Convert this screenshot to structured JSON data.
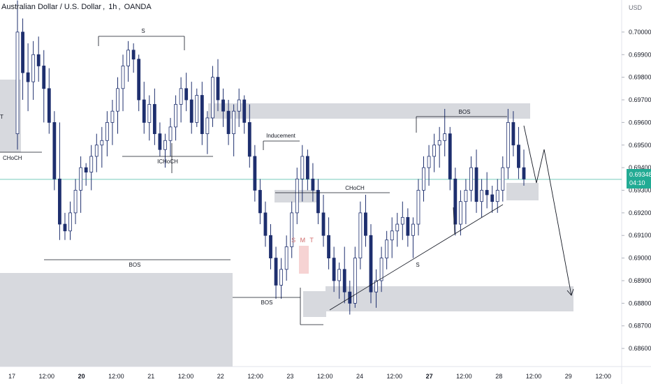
{
  "title": {
    "symbol": "Australian Dollar / U.S. Dollar",
    "interval": "1h",
    "exchange": "OANDA"
  },
  "currency_label": "USD",
  "last_price": {
    "value": "0.69348",
    "countdown": "04:10",
    "color": "#22ab94"
  },
  "colors": {
    "candle": "#1e2f6e",
    "zone": "#d7d9de",
    "smt_zone": "#f6d3d3",
    "line": "#131722",
    "price_line": "#22ab94"
  },
  "chart_data": {
    "type": "candlestick",
    "title": "Australian Dollar / U.S. Dollar, 1h, OANDA",
    "y_ticks": [
      "0.70000",
      "0.69900",
      "0.69800",
      "0.69700",
      "0.69600",
      "0.69500",
      "0.69400",
      "0.69300",
      "0.69200",
      "0.69100",
      "0.69000",
      "0.68900",
      "0.68800",
      "0.68700",
      "0.68600"
    ],
    "ylim": [
      0.6852,
      0.7008
    ],
    "x_ticks": [
      {
        "label": "17",
        "bold": false
      },
      {
        "label": "12:00",
        "bold": false
      },
      {
        "label": "20",
        "bold": true
      },
      {
        "label": "12:00",
        "bold": false
      },
      {
        "label": "21",
        "bold": false
      },
      {
        "label": "12:00",
        "bold": false
      },
      {
        "label": "22",
        "bold": false
      },
      {
        "label": "12:00",
        "bold": false
      },
      {
        "label": "23",
        "bold": false
      },
      {
        "label": "12:00",
        "bold": false
      },
      {
        "label": "24",
        "bold": false
      },
      {
        "label": "12:00",
        "bold": false
      },
      {
        "label": "27",
        "bold": true
      },
      {
        "label": "12:00",
        "bold": false
      },
      {
        "label": "28",
        "bold": false
      },
      {
        "label": "12:00",
        "bold": false
      },
      {
        "label": "29",
        "bold": false
      },
      {
        "label": "12:00",
        "bold": false
      }
    ],
    "annotations": [
      "S",
      "CHoCH",
      "ICHoCH",
      "BOS",
      "Inducement",
      "CHoCH",
      "BOS",
      "S M T",
      "BOS",
      "S",
      "T"
    ],
    "last_price": 0.69348,
    "candles": [
      [
        0.6955,
        0.7014,
        0.6948,
        0.7
      ],
      [
        0.7,
        0.7006,
        0.697,
        0.6982
      ],
      [
        0.6982,
        0.6995,
        0.6965,
        0.6978
      ],
      [
        0.6978,
        0.6996,
        0.697,
        0.699
      ],
      [
        0.699,
        0.6998,
        0.6978,
        0.6985
      ],
      [
        0.6985,
        0.6992,
        0.696,
        0.6975
      ],
      [
        0.6975,
        0.6984,
        0.6955,
        0.696
      ],
      [
        0.696,
        0.6965,
        0.693,
        0.6935
      ],
      [
        0.6935,
        0.696,
        0.6908,
        0.6915
      ],
      [
        0.6915,
        0.692,
        0.6908,
        0.6912
      ],
      [
        0.6912,
        0.6925,
        0.6908,
        0.692
      ],
      [
        0.692,
        0.6935,
        0.6915,
        0.693
      ],
      [
        0.693,
        0.6945,
        0.692,
        0.694
      ],
      [
        0.694,
        0.6942,
        0.6932,
        0.6938
      ],
      [
        0.6938,
        0.695,
        0.693,
        0.6945
      ],
      [
        0.6945,
        0.6955,
        0.6938,
        0.695
      ],
      [
        0.695,
        0.6958,
        0.694,
        0.6952
      ],
      [
        0.6952,
        0.6965,
        0.6945,
        0.696
      ],
      [
        0.696,
        0.697,
        0.695,
        0.6965
      ],
      [
        0.6965,
        0.698,
        0.6955,
        0.6975
      ],
      [
        0.6975,
        0.699,
        0.6965,
        0.6985
      ],
      [
        0.6985,
        0.6996,
        0.6978,
        0.6992
      ],
      [
        0.6992,
        0.6995,
        0.6982,
        0.6988
      ],
      [
        0.6988,
        0.699,
        0.6965,
        0.697
      ],
      [
        0.697,
        0.6978,
        0.6955,
        0.696
      ],
      [
        0.696,
        0.6972,
        0.6952,
        0.6968
      ],
      [
        0.6968,
        0.6975,
        0.695,
        0.6955
      ],
      [
        0.6955,
        0.696,
        0.6945,
        0.6948
      ],
      [
        0.6948,
        0.6955,
        0.694,
        0.6952
      ],
      [
        0.6952,
        0.6962,
        0.6945,
        0.6958
      ],
      [
        0.6958,
        0.6972,
        0.6952,
        0.6968
      ],
      [
        0.6968,
        0.698,
        0.696,
        0.6975
      ],
      [
        0.6975,
        0.6982,
        0.6965,
        0.697
      ],
      [
        0.697,
        0.6978,
        0.6955,
        0.696
      ],
      [
        0.696,
        0.6975,
        0.6958,
        0.6972
      ],
      [
        0.6972,
        0.6978,
        0.695,
        0.6955
      ],
      [
        0.6955,
        0.6965,
        0.6946,
        0.6962
      ],
      [
        0.6962,
        0.6985,
        0.6958,
        0.698
      ],
      [
        0.698,
        0.6988,
        0.6965,
        0.697
      ],
      [
        0.697,
        0.6975,
        0.6958,
        0.6965
      ],
      [
        0.6965,
        0.697,
        0.695,
        0.6955
      ],
      [
        0.6955,
        0.6968,
        0.6945,
        0.6965
      ],
      [
        0.6965,
        0.6975,
        0.6958,
        0.697
      ],
      [
        0.697,
        0.6972,
        0.6955,
        0.696
      ],
      [
        0.696,
        0.6968,
        0.694,
        0.6945
      ],
      [
        0.6945,
        0.695,
        0.6925,
        0.693
      ],
      [
        0.693,
        0.6935,
        0.6915,
        0.692
      ],
      [
        0.692,
        0.6925,
        0.6905,
        0.691
      ],
      [
        0.691,
        0.6915,
        0.6895,
        0.69
      ],
      [
        0.69,
        0.6905,
        0.6882,
        0.6888
      ],
      [
        0.6888,
        0.69,
        0.6882,
        0.6895
      ],
      [
        0.6895,
        0.691,
        0.689,
        0.6905
      ],
      [
        0.6905,
        0.6925,
        0.69,
        0.692
      ],
      [
        0.692,
        0.694,
        0.6915,
        0.6935
      ],
      [
        0.6935,
        0.695,
        0.6925,
        0.6945
      ],
      [
        0.6945,
        0.6948,
        0.693,
        0.6935
      ],
      [
        0.6935,
        0.6942,
        0.6925,
        0.693
      ],
      [
        0.693,
        0.6935,
        0.6915,
        0.692
      ],
      [
        0.692,
        0.6928,
        0.6905,
        0.691
      ],
      [
        0.691,
        0.6918,
        0.6895,
        0.69
      ],
      [
        0.69,
        0.6905,
        0.6885,
        0.689
      ],
      [
        0.689,
        0.6898,
        0.6882,
        0.6895
      ],
      [
        0.6895,
        0.6905,
        0.688,
        0.6885
      ],
      [
        0.6885,
        0.689,
        0.6875,
        0.688
      ],
      [
        0.688,
        0.6905,
        0.6878,
        0.69
      ],
      [
        0.69,
        0.6925,
        0.6895,
        0.692
      ],
      [
        0.692,
        0.6928,
        0.6905,
        0.691
      ],
      [
        0.691,
        0.6915,
        0.688,
        0.6885
      ],
      [
        0.6885,
        0.6895,
        0.6878,
        0.689
      ],
      [
        0.689,
        0.6905,
        0.6885,
        0.69
      ],
      [
        0.69,
        0.6912,
        0.6895,
        0.6908
      ],
      [
        0.6908,
        0.6918,
        0.69,
        0.6912
      ],
      [
        0.6912,
        0.692,
        0.6905,
        0.6915
      ],
      [
        0.6915,
        0.6925,
        0.6908,
        0.6918
      ],
      [
        0.6918,
        0.6922,
        0.6905,
        0.691
      ],
      [
        0.691,
        0.6918,
        0.69,
        0.6915
      ],
      [
        0.6915,
        0.6935,
        0.691,
        0.693
      ],
      [
        0.693,
        0.6945,
        0.6925,
        0.694
      ],
      [
        0.694,
        0.695,
        0.6932,
        0.6945
      ],
      [
        0.6945,
        0.6955,
        0.6938,
        0.695
      ],
      [
        0.695,
        0.6958,
        0.694,
        0.6952
      ],
      [
        0.6952,
        0.6966,
        0.6945,
        0.6955
      ],
      [
        0.6955,
        0.6958,
        0.693,
        0.6935
      ],
      [
        0.6935,
        0.694,
        0.691,
        0.6915
      ],
      [
        0.6915,
        0.693,
        0.691,
        0.6925
      ],
      [
        0.6925,
        0.6935,
        0.6915,
        0.693
      ],
      [
        0.693,
        0.6945,
        0.6925,
        0.694
      ],
      [
        0.694,
        0.6948,
        0.692,
        0.6925
      ],
      [
        0.6925,
        0.6935,
        0.6918,
        0.693
      ],
      [
        0.693,
        0.6938,
        0.6922,
        0.6928
      ],
      [
        0.6928,
        0.6932,
        0.692,
        0.6925
      ],
      [
        0.6925,
        0.6935,
        0.692,
        0.693
      ],
      [
        0.693,
        0.6945,
        0.6925,
        0.694
      ],
      [
        0.694,
        0.6966,
        0.6935,
        0.696
      ],
      [
        0.696,
        0.6965,
        0.6945,
        0.695
      ],
      [
        0.695,
        0.6958,
        0.6935,
        0.694
      ],
      [
        0.694,
        0.6948,
        0.6932,
        0.6935
      ]
    ]
  }
}
